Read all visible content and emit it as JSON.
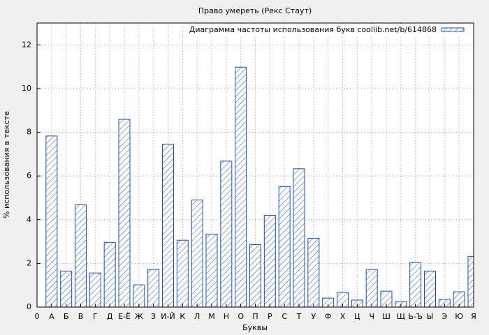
{
  "chart_data": {
    "type": "bar",
    "title": "Право умереть (Рекс Стаут)",
    "x_label": "Буквы",
    "y_label": "% использования в тексте",
    "categories": [
      "0",
      "А",
      "Б",
      "В",
      "Г",
      "Д",
      "Е-Ё",
      "Ж",
      "З",
      "И-Й",
      "К",
      "Л",
      "М",
      "Н",
      "О",
      "П",
      "Р",
      "С",
      "Т",
      "У",
      "Ф",
      "Х",
      "Ц",
      "Ч",
      "Ш",
      "Щ",
      "Ь-Ъ",
      "Ы",
      "Э",
      "Ю",
      "Я"
    ],
    "series": [
      {
        "name": "Диаграмма частоты использования букв coollib.net/b/614868",
        "color": "#1f4fa8",
        "values": [
          null,
          7.83,
          1.65,
          4.68,
          1.56,
          2.96,
          8.59,
          1.02,
          1.72,
          7.45,
          3.06,
          4.9,
          3.34,
          6.68,
          10.98,
          2.86,
          4.2,
          5.51,
          6.33,
          3.15,
          0.41,
          0.67,
          0.32,
          1.72,
          0.73,
          0.25,
          2.04,
          1.65,
          0.35,
          0.7,
          2.32
        ]
      }
    ],
    "ylim": [
      0,
      13
    ],
    "yticks": [
      0,
      2,
      4,
      6,
      8,
      10,
      12
    ],
    "grid": true,
    "legend": "top-right"
  }
}
